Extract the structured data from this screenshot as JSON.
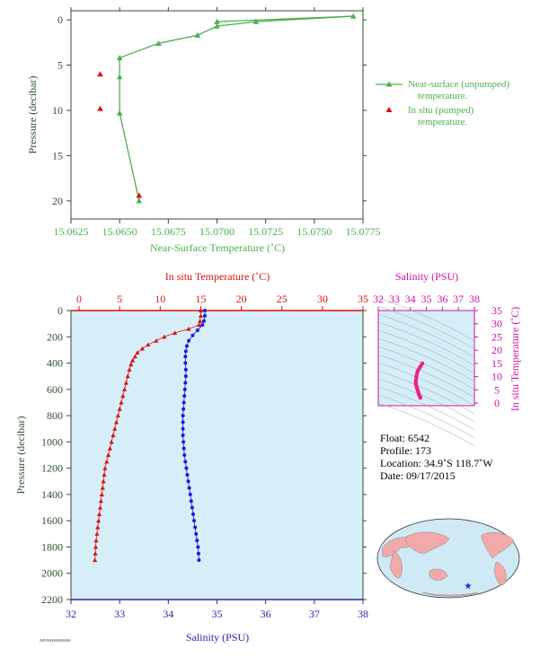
{
  "colors": {
    "near_surface": "#4caf50",
    "in_situ": "#dd1111",
    "salinity": "#1a1adf",
    "salinity_axis": "#3322aa",
    "pressure_axis": "#2f4f2f",
    "ts_axis": "#cc11aa",
    "panel_bg": "#d6eef7",
    "ts_curve": "#ee2288"
  },
  "top_chart": {
    "chart_data": {
      "type": "line",
      "xlabel": "Near-Surface Temperature (˚C)",
      "ylabel": "Pressure (decibar)",
      "xlim": [
        15.0625,
        15.0775
      ],
      "ylim": [
        22,
        -1
      ],
      "x_ticks": [
        "15.0625",
        "15.0650",
        "15.0675",
        "15.0700",
        "15.0725",
        "15.0750",
        "15.0775"
      ],
      "y_ticks": [
        "0",
        "5",
        "10",
        "15",
        "20"
      ],
      "series": [
        {
          "name": "Near-surface (unpumped) temperature.",
          "points": [
            [
              15.066,
              20
            ],
            [
              15.065,
              10.3
            ],
            [
              15.065,
              6.3
            ],
            [
              15.065,
              4.2
            ],
            [
              15.067,
              2.6
            ],
            [
              15.069,
              1.7
            ],
            [
              15.07,
              0.7
            ],
            [
              15.072,
              0.2
            ],
            [
              15.077,
              -0.4
            ],
            [
              15.07,
              0.2
            ]
          ]
        },
        {
          "name": "In situ (pumped) temperature.",
          "points": [
            [
              15.064,
              6
            ],
            [
              15.064,
              9.8
            ],
            [
              15.066,
              19.4
            ]
          ]
        }
      ],
      "legend": [
        "Near-surface (unpumped)",
        "temperature.",
        "In situ (pumped)",
        "temperature."
      ]
    }
  },
  "bottom_chart": {
    "chart_data": {
      "type": "scatter",
      "xlabel_top": "In situ Temperature (˚C)",
      "xlabel_bottom": "Salinity (PSU)",
      "ylabel": "Pressure (decibar)",
      "temp_lim": [
        -1,
        35
      ],
      "sal_lim": [
        32,
        38
      ],
      "pres_lim": [
        0,
        2200
      ],
      "temp_ticks": [
        "0",
        "5",
        "10",
        "15",
        "20",
        "25",
        "30",
        "35"
      ],
      "sal_ticks": [
        "32",
        "33",
        "34",
        "35",
        "36",
        "37",
        "38"
      ],
      "pres_ticks": [
        "0",
        "200",
        "400",
        "600",
        "800",
        "1000",
        "1200",
        "1400",
        "1600",
        "1800",
        "2000",
        "2200"
      ],
      "temperature": [
        [
          15.0,
          0
        ],
        [
          15.0,
          40
        ],
        [
          14.9,
          80
        ],
        [
          14.8,
          110
        ],
        [
          13.5,
          140
        ],
        [
          11.8,
          170
        ],
        [
          10.5,
          200
        ],
        [
          9.5,
          230
        ],
        [
          8.5,
          260
        ],
        [
          7.8,
          290
        ],
        [
          7.2,
          320
        ],
        [
          6.9,
          350
        ],
        [
          6.6,
          380
        ],
        [
          6.4,
          410
        ],
        [
          6.2,
          450
        ],
        [
          6.0,
          500
        ],
        [
          5.8,
          550
        ],
        [
          5.6,
          600
        ],
        [
          5.4,
          650
        ],
        [
          5.2,
          700
        ],
        [
          5.0,
          750
        ],
        [
          4.8,
          800
        ],
        [
          4.6,
          850
        ],
        [
          4.4,
          900
        ],
        [
          4.2,
          950
        ],
        [
          4.0,
          1000
        ],
        [
          3.8,
          1050
        ],
        [
          3.6,
          1100
        ],
        [
          3.4,
          1150
        ],
        [
          3.2,
          1200
        ],
        [
          3.1,
          1250
        ],
        [
          3.0,
          1300
        ],
        [
          2.9,
          1350
        ],
        [
          2.8,
          1400
        ],
        [
          2.7,
          1450
        ],
        [
          2.6,
          1500
        ],
        [
          2.5,
          1550
        ],
        [
          2.4,
          1600
        ],
        [
          2.3,
          1650
        ],
        [
          2.2,
          1700
        ],
        [
          2.1,
          1750
        ],
        [
          2.05,
          1800
        ],
        [
          2.0,
          1850
        ],
        [
          1.95,
          1900
        ]
      ],
      "salinity": [
        [
          34.75,
          0
        ],
        [
          34.75,
          40
        ],
        [
          34.73,
          80
        ],
        [
          34.7,
          110
        ],
        [
          34.6,
          150
        ],
        [
          34.5,
          190
        ],
        [
          34.42,
          230
        ],
        [
          34.38,
          270
        ],
        [
          34.36,
          310
        ],
        [
          34.35,
          350
        ],
        [
          34.35,
          400
        ],
        [
          34.36,
          450
        ],
        [
          34.36,
          500
        ],
        [
          34.35,
          550
        ],
        [
          34.34,
          600
        ],
        [
          34.33,
          650
        ],
        [
          34.32,
          700
        ],
        [
          34.31,
          750
        ],
        [
          34.3,
          800
        ],
        [
          34.3,
          850
        ],
        [
          34.3,
          900
        ],
        [
          34.3,
          950
        ],
        [
          34.31,
          1000
        ],
        [
          34.32,
          1050
        ],
        [
          34.33,
          1100
        ],
        [
          34.35,
          1150
        ],
        [
          34.37,
          1200
        ],
        [
          34.39,
          1250
        ],
        [
          34.41,
          1300
        ],
        [
          34.43,
          1350
        ],
        [
          34.45,
          1400
        ],
        [
          34.47,
          1450
        ],
        [
          34.49,
          1500
        ],
        [
          34.51,
          1550
        ],
        [
          34.53,
          1600
        ],
        [
          34.55,
          1650
        ],
        [
          34.57,
          1700
        ],
        [
          34.59,
          1750
        ],
        [
          34.61,
          1800
        ],
        [
          34.62,
          1850
        ],
        [
          34.63,
          1900
        ]
      ]
    }
  },
  "ts_chart": {
    "chart_data": {
      "type": "line",
      "xlabel": "Salinity (PSU)",
      "ylabel": "In situ Temperature (˚C)",
      "sal_lim": [
        32,
        38
      ],
      "temp_lim": [
        -1,
        35
      ],
      "sal_ticks": [
        "32",
        "33",
        "34",
        "35",
        "36",
        "37",
        "38"
      ],
      "temp_ticks": [
        "0",
        "5",
        "10",
        "15",
        "20",
        "25",
        "30",
        "35"
      ],
      "points": [
        [
          34.63,
          2.0
        ],
        [
          34.6,
          2.5
        ],
        [
          34.55,
          3.0
        ],
        [
          34.5,
          4.0
        ],
        [
          34.45,
          5.0
        ],
        [
          34.4,
          6.0
        ],
        [
          34.35,
          7.0
        ],
        [
          34.34,
          8.0
        ],
        [
          34.38,
          10.0
        ],
        [
          34.45,
          12.0
        ],
        [
          34.6,
          13.5
        ],
        [
          34.75,
          15.0
        ]
      ]
    }
  },
  "info": {
    "float": "Float:  6542",
    "profile": "Profile:  173",
    "location": "Location:  34.9˚S  118.7˚W",
    "date": "Date:  09/17/2015"
  },
  "footer_code": "APEX000000000000"
}
